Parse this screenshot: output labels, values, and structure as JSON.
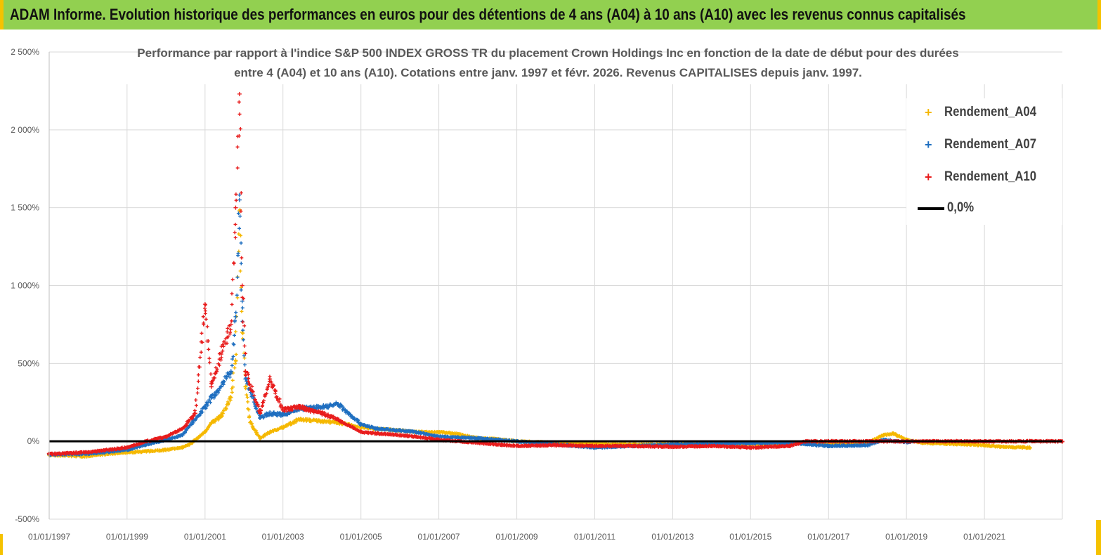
{
  "banner": {
    "title": "ADAM Informe. Evolution historique des performances en euros pour des détentions de 4 ans (A04) à 10 ans (A10) avec les revenus connus capitalisés"
  },
  "colors": {
    "banner_bg": "#92d050",
    "corner_accent": "#f5c200",
    "A04": "#f5b800",
    "A07": "#1f6fc0",
    "A10": "#e81c1c",
    "zero_line": "#000000",
    "grid": "#d9d9d9"
  },
  "chart_data": {
    "type": "scatter",
    "title_lines": [
      "Performance par rapport à l'indice S&P 500 INDEX GROSS TR  du placement Crown Holdings Inc en fonction de la date de début pour des durées",
      "entre 4 (A04) et 10 ans (A10).  Cotations entre janv. 1997 et févr. 2026. Revenus  CAPITALISES depuis janv. 1997."
    ],
    "y_axis": {
      "min": -500,
      "max": 2500,
      "step": 500,
      "unit": "%",
      "tick_labels": [
        "-500%",
        "0%",
        "500%",
        "1 000%",
        "1 500%",
        "2 000%",
        "2 500%"
      ]
    },
    "x_axis": {
      "start": "1997-01-01",
      "end": "2023-01-01",
      "tick_labels": [
        "01/01/1997",
        "01/01/1999",
        "01/01/2001",
        "01/01/2003",
        "01/01/2005",
        "01/01/2007",
        "01/01/2009",
        "01/01/2011",
        "01/01/2013",
        "01/01/2015",
        "01/01/2017",
        "01/01/2019",
        "01/01/2021"
      ]
    },
    "legend_position": "top-right",
    "grid": true,
    "series": [
      {
        "name": "Rendement_A04",
        "marker": "+",
        "color": "#f5b800",
        "points": [
          [
            "1997-01-01",
            -88
          ],
          [
            "1997-07-01",
            -92
          ],
          [
            "1998-01-01",
            -95
          ],
          [
            "1998-07-01",
            -80
          ],
          [
            "1999-01-01",
            -72
          ],
          [
            "1999-07-01",
            -65
          ],
          [
            "2000-01-01",
            -55
          ],
          [
            "2000-06-01",
            -40
          ],
          [
            "2000-09-01",
            -10
          ],
          [
            "2001-01-01",
            60
          ],
          [
            "2001-03-01",
            120
          ],
          [
            "2001-06-01",
            160
          ],
          [
            "2001-09-01",
            280
          ],
          [
            "2001-10-15",
            520
          ],
          [
            "2001-11-20",
            1480
          ],
          [
            "2001-12-15",
            700
          ],
          [
            "2002-01-15",
            350
          ],
          [
            "2002-03-01",
            120
          ],
          [
            "2002-06-01",
            20
          ],
          [
            "2002-09-01",
            60
          ],
          [
            "2003-01-01",
            90
          ],
          [
            "2003-06-01",
            140
          ],
          [
            "2004-01-01",
            130
          ],
          [
            "2004-06-01",
            120
          ],
          [
            "2005-01-01",
            90
          ],
          [
            "2005-06-01",
            80
          ],
          [
            "2006-01-01",
            70
          ],
          [
            "2006-06-01",
            60
          ],
          [
            "2007-01-01",
            60
          ],
          [
            "2007-06-01",
            50
          ],
          [
            "2008-01-01",
            20
          ],
          [
            "2008-06-01",
            15
          ],
          [
            "2009-01-01",
            0
          ],
          [
            "2010-01-01",
            -10
          ],
          [
            "2011-01-01",
            -15
          ],
          [
            "2012-01-01",
            -20
          ],
          [
            "2013-01-01",
            -20
          ],
          [
            "2014-01-01",
            -15
          ],
          [
            "2015-01-01",
            -20
          ],
          [
            "2016-01-01",
            -10
          ],
          [
            "2017-01-01",
            -20
          ],
          [
            "2018-01-01",
            -10
          ],
          [
            "2018-06-01",
            40
          ],
          [
            "2018-09-01",
            50
          ],
          [
            "2019-01-01",
            10
          ],
          [
            "2019-06-01",
            -10
          ],
          [
            "2020-01-01",
            -15
          ],
          [
            "2021-01-01",
            -25
          ],
          [
            "2021-06-01",
            -35
          ],
          [
            "2022-03-01",
            -40
          ]
        ]
      },
      {
        "name": "Rendement_A07",
        "marker": "+",
        "color": "#1f6fc0",
        "points": [
          [
            "1997-01-01",
            -85
          ],
          [
            "1998-01-01",
            -80
          ],
          [
            "1999-01-01",
            -55
          ],
          [
            "1999-07-01",
            -20
          ],
          [
            "2000-01-01",
            10
          ],
          [
            "2000-06-01",
            40
          ],
          [
            "2001-01-01",
            220
          ],
          [
            "2001-03-01",
            280
          ],
          [
            "2001-06-01",
            350
          ],
          [
            "2001-09-01",
            450
          ],
          [
            "2001-10-15",
            800
          ],
          [
            "2001-11-20",
            1550
          ],
          [
            "2001-12-15",
            900
          ],
          [
            "2002-01-15",
            400
          ],
          [
            "2002-06-01",
            150
          ],
          [
            "2002-09-01",
            180
          ],
          [
            "2003-01-01",
            170
          ],
          [
            "2003-06-01",
            210
          ],
          [
            "2004-01-01",
            220
          ],
          [
            "2004-06-01",
            240
          ],
          [
            "2005-01-01",
            110
          ],
          [
            "2005-06-01",
            80
          ],
          [
            "2006-01-01",
            70
          ],
          [
            "2006-06-01",
            60
          ],
          [
            "2007-01-01",
            30
          ],
          [
            "2008-01-01",
            20
          ],
          [
            "2009-01-01",
            0
          ],
          [
            "2010-01-01",
            -20
          ],
          [
            "2011-01-01",
            -40
          ],
          [
            "2012-01-01",
            -30
          ],
          [
            "2013-01-01",
            -20
          ],
          [
            "2014-01-01",
            -15
          ],
          [
            "2015-01-01",
            -10
          ],
          [
            "2016-01-01",
            -10
          ],
          [
            "2017-01-01",
            -30
          ],
          [
            "2018-01-01",
            -25
          ],
          [
            "2018-06-01",
            10
          ],
          [
            "2019-01-01",
            -5
          ],
          [
            "2019-03-01",
            0
          ]
        ]
      },
      {
        "name": "Rendement_A10",
        "marker": "+",
        "color": "#e81c1c",
        "points": [
          [
            "1997-01-01",
            -82
          ],
          [
            "1998-01-01",
            -70
          ],
          [
            "1999-01-01",
            -40
          ],
          [
            "1999-07-01",
            0
          ],
          [
            "2000-01-01",
            30
          ],
          [
            "2000-06-01",
            80
          ],
          [
            "2000-10-01",
            180
          ],
          [
            "2001-01-01",
            880
          ],
          [
            "2001-03-01",
            350
          ],
          [
            "2001-06-01",
            560
          ],
          [
            "2001-09-01",
            750
          ],
          [
            "2001-10-15",
            1500
          ],
          [
            "2001-11-20",
            2230
          ],
          [
            "2001-12-15",
            1000
          ],
          [
            "2002-01-15",
            450
          ],
          [
            "2002-06-01",
            180
          ],
          [
            "2002-09-01",
            400
          ],
          [
            "2003-01-01",
            200
          ],
          [
            "2003-06-01",
            220
          ],
          [
            "2004-01-01",
            180
          ],
          [
            "2004-06-01",
            140
          ],
          [
            "2005-01-01",
            60
          ],
          [
            "2005-06-01",
            50
          ],
          [
            "2006-01-01",
            40
          ],
          [
            "2006-06-01",
            30
          ],
          [
            "2007-01-01",
            10
          ],
          [
            "2008-01-01",
            -10
          ],
          [
            "2009-01-01",
            -30
          ],
          [
            "2010-01-01",
            -25
          ],
          [
            "2011-01-01",
            -30
          ],
          [
            "2012-01-01",
            -30
          ],
          [
            "2013-01-01",
            -35
          ],
          [
            "2014-01-01",
            -30
          ],
          [
            "2015-01-01",
            -40
          ],
          [
            "2016-01-01",
            -30
          ],
          [
            "2016-06-01",
            0
          ],
          [
            "2017-01-01",
            0
          ],
          [
            "2018-01-01",
            0
          ],
          [
            "2019-01-01",
            0
          ],
          [
            "2020-01-01",
            0
          ],
          [
            "2021-01-01",
            0
          ],
          [
            "2022-01-01",
            0
          ],
          [
            "2023-01-01",
            0
          ]
        ]
      },
      {
        "name": "0,0%",
        "type": "line",
        "color": "#000000",
        "points": [
          [
            "1997-01-01",
            0
          ],
          [
            "2023-01-01",
            0
          ]
        ]
      }
    ]
  }
}
